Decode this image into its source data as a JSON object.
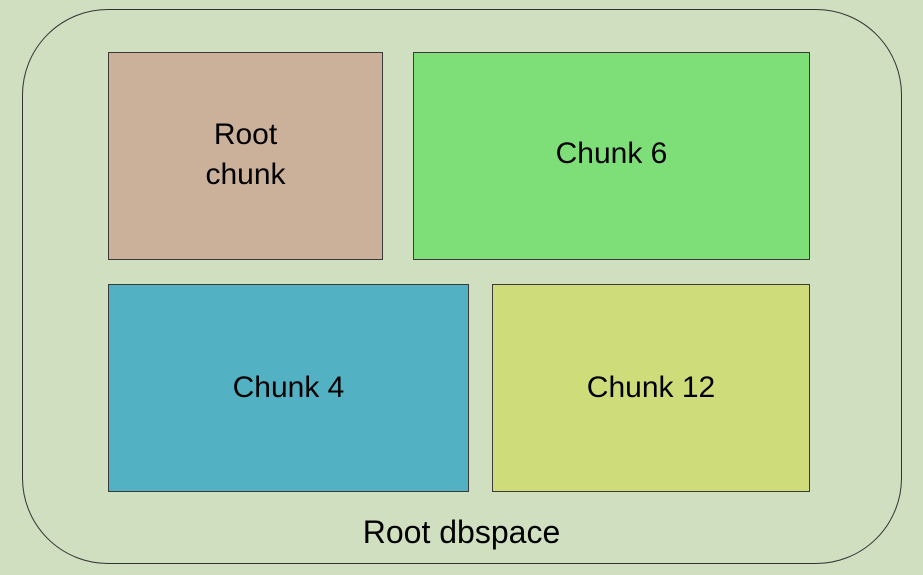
{
  "diagram": {
    "container": {
      "label": "Root dbspace",
      "fill": "#cfdfc0"
    },
    "chunks": [
      {
        "id": "root-chunk",
        "lines": [
          "Root",
          "chunk"
        ],
        "fill": "#cbb09a"
      },
      {
        "id": "chunk-6",
        "lines": [
          "Chunk 6"
        ],
        "fill": "#7ede78"
      },
      {
        "id": "chunk-4",
        "lines": [
          "Chunk 4"
        ],
        "fill": "#52b2c3"
      },
      {
        "id": "chunk-12",
        "lines": [
          "Chunk 12"
        ],
        "fill": "#cedd79"
      }
    ]
  }
}
